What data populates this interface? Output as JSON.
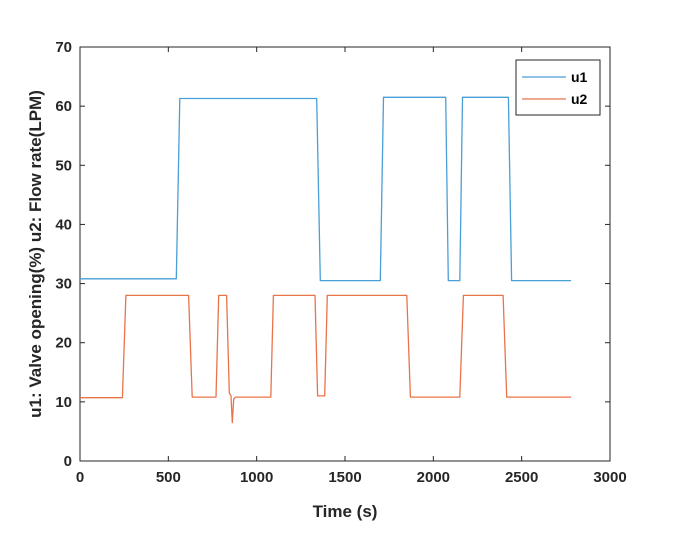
{
  "chart_data": {
    "type": "line",
    "xlabel": "Time (s)",
    "ylabel": "u1: Valve opening(%) u2: Flow rate(LPM)",
    "xlim": [
      0,
      3000
    ],
    "ylim": [
      0,
      70
    ],
    "xticks": [
      0,
      500,
      1000,
      1500,
      2000,
      2500,
      3000
    ],
    "yticks": [
      0,
      10,
      20,
      30,
      40,
      50,
      60,
      70
    ],
    "grid": false,
    "legend_position": "top-right",
    "series": [
      {
        "name": "u1",
        "color": "#4a9fd6",
        "x": [
          0,
          545,
          565,
          1340,
          1360,
          1700,
          1718,
          2070,
          2085,
          2150,
          2165,
          2425,
          2443,
          2780
        ],
        "y": [
          30.8,
          30.8,
          61.3,
          61.3,
          30.5,
          30.5,
          61.5,
          61.5,
          30.5,
          30.5,
          61.5,
          61.5,
          30.5,
          30.5
        ]
      },
      {
        "name": "u2",
        "color": "#e8744a",
        "x": [
          0,
          240,
          260,
          615,
          635,
          770,
          785,
          830,
          845,
          855,
          862,
          870,
          880,
          1080,
          1095,
          1330,
          1345,
          1385,
          1400,
          1850,
          1870,
          2150,
          2170,
          2395,
          2415,
          2780
        ],
        "y": [
          10.7,
          10.7,
          28.0,
          28.0,
          10.8,
          10.8,
          28.0,
          28.0,
          11.5,
          11.0,
          6.5,
          10.5,
          10.8,
          10.8,
          28.0,
          28.0,
          11.0,
          11.0,
          28.0,
          28.0,
          10.8,
          10.8,
          28.0,
          28.0,
          10.8,
          10.8
        ]
      }
    ]
  }
}
